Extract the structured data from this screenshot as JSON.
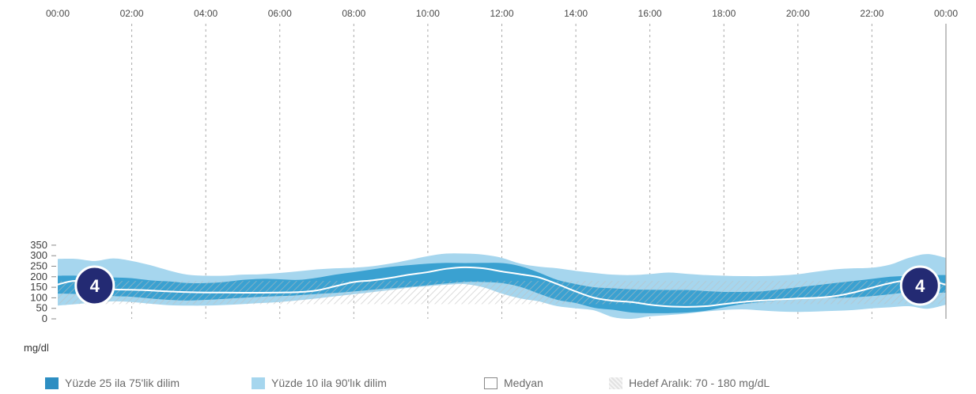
{
  "chart_data": {
    "type": "area",
    "title": "",
    "xlabel": "",
    "ylabel": "mg/dl",
    "x_ticks": [
      "00:00",
      "02:00",
      "04:00",
      "06:00",
      "08:00",
      "10:00",
      "12:00",
      "14:00",
      "16:00",
      "18:00",
      "20:00",
      "22:00",
      "00:00"
    ],
    "y_ticks": [
      0,
      50,
      100,
      150,
      200,
      250,
      300,
      350
    ],
    "ylim": [
      0,
      380
    ],
    "xlim_hours": [
      0,
      24
    ],
    "grid": "vertical dotted",
    "legend_position": "bottom",
    "x_hours": [
      0,
      0.5,
      1,
      1.5,
      2,
      2.5,
      3,
      3.5,
      4,
      4.5,
      5,
      5.5,
      6,
      6.5,
      7,
      7.5,
      8,
      8.5,
      9,
      9.5,
      10,
      10.5,
      11,
      11.5,
      12,
      12.5,
      13,
      13.5,
      14,
      14.5,
      15,
      15.5,
      16,
      16.5,
      17,
      17.5,
      18,
      18.5,
      19,
      19.5,
      20,
      20.5,
      21,
      21.5,
      22,
      22.5,
      23,
      23.5,
      24
    ],
    "target_range": {
      "low": 70,
      "high": 180,
      "label": "Hedef Aralık:  70 - 180 mg/dL"
    },
    "series": [
      {
        "name": "Yüzde 10 ila 90'lık dilim",
        "color": "#a6d6ee",
        "upper": [
          285,
          285,
          275,
          287,
          275,
          255,
          230,
          210,
          205,
          205,
          210,
          212,
          218,
          226,
          235,
          240,
          243,
          250,
          263,
          280,
          298,
          310,
          310,
          305,
          290,
          262,
          248,
          240,
          228,
          218,
          210,
          208,
          213,
          220,
          214,
          208,
          205,
          203,
          203,
          206,
          212,
          224,
          235,
          240,
          243,
          258,
          290,
          308,
          290
        ],
        "lower": [
          63,
          70,
          78,
          83,
          80,
          72,
          65,
          63,
          63,
          66,
          70,
          75,
          80,
          88,
          97,
          107,
          117,
          127,
          137,
          148,
          155,
          162,
          165,
          150,
          120,
          97,
          83,
          60,
          50,
          40,
          8,
          0,
          12,
          18,
          25,
          35,
          42,
          45,
          40,
          35,
          33,
          35,
          38,
          42,
          50,
          55,
          60,
          48,
          67
        ]
      },
      {
        "name": "Yüzde 25 ila 75'lik dilim",
        "color": "#3aa1d1",
        "upper": [
          205,
          205,
          200,
          197,
          193,
          183,
          178,
          170,
          170,
          175,
          185,
          190,
          188,
          185,
          195,
          210,
          222,
          235,
          247,
          255,
          262,
          266,
          265,
          266,
          265,
          250,
          220,
          185,
          165,
          150,
          145,
          140,
          138,
          137,
          137,
          132,
          128,
          128,
          130,
          140,
          150,
          160,
          170,
          180,
          190,
          200,
          205,
          208,
          208
        ],
        "lower": [
          120,
          118,
          113,
          108,
          105,
          97,
          90,
          87,
          90,
          95,
          100,
          105,
          108,
          112,
          118,
          123,
          130,
          138,
          145,
          152,
          160,
          168,
          175,
          175,
          170,
          152,
          120,
          90,
          75,
          52,
          43,
          30,
          27,
          27,
          30,
          38,
          55,
          70,
          80,
          88,
          95,
          100,
          100,
          102,
          108,
          117,
          125,
          122,
          125
        ]
      },
      {
        "name": "Medyan",
        "color": "#ffffff",
        "values": [
          163,
          180,
          147,
          140,
          138,
          135,
          130,
          127,
          125,
          125,
          124,
          124,
          125,
          127,
          135,
          155,
          175,
          183,
          195,
          210,
          222,
          238,
          245,
          240,
          225,
          212,
          197,
          165,
          130,
          100,
          86,
          80,
          67,
          59,
          57,
          60,
          70,
          80,
          87,
          92,
          97,
          100,
          108,
          125,
          148,
          170,
          185,
          184,
          162
        ]
      }
    ],
    "markers": [
      {
        "label": "4",
        "x_hour": 1.0,
        "center": 158,
        "whisker_high": 207,
        "whisker_low": 112
      },
      {
        "label": "4",
        "x_hour": 23.3,
        "center": 158,
        "whisker_high": 211,
        "whisker_low": 123
      }
    ],
    "legend": [
      {
        "label": "Yüzde 25 ila 75'lik dilim",
        "color": "#3aa1d1"
      },
      {
        "label": "Yüzde 10 ila 90'lık dilim",
        "color": "#a6d6ee"
      },
      {
        "label": "Medyan",
        "color": "#ffffff"
      },
      {
        "label": "Hedef Aralık:  70 - 180 mg/dL",
        "color": "#e4e4e4"
      }
    ]
  }
}
